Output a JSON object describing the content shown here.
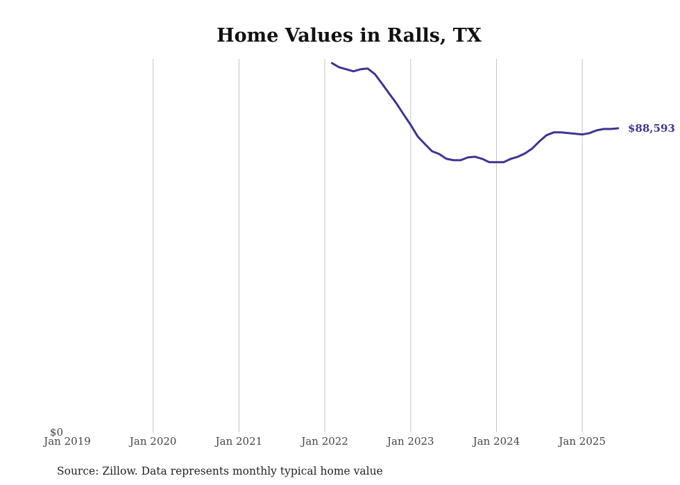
{
  "chart_data": {
    "type": "line",
    "title": "Home Values in Ralls, TX",
    "xlabel": "",
    "ylabel": "",
    "x_tick_labels": [
      "Jan 2019",
      "Jan 2020",
      "Jan 2021",
      "Jan 2022",
      "Jan 2023",
      "Jan 2024",
      "Jan 2025"
    ],
    "y_tick_labels": [
      "$0"
    ],
    "ylim": [
      0,
      108800
    ],
    "xlim": [
      "2019-01",
      "2025-06"
    ],
    "grid": "vertical",
    "line_color": "#3a3594",
    "series": [
      {
        "name": "Typical home value",
        "start": "2022-02",
        "x": [
          "2022-02",
          "2022-03",
          "2022-04",
          "2022-05",
          "2022-06",
          "2022-07",
          "2022-08",
          "2022-09",
          "2022-10",
          "2022-11",
          "2022-12",
          "2023-01",
          "2023-02",
          "2023-03",
          "2023-04",
          "2023-05",
          "2023-06",
          "2023-07",
          "2023-08",
          "2023-09",
          "2023-10",
          "2023-11",
          "2023-12",
          "2024-01",
          "2024-02",
          "2024-03",
          "2024-04",
          "2024-05",
          "2024-06",
          "2024-07",
          "2024-08",
          "2024-09",
          "2024-10",
          "2024-11",
          "2024-12",
          "2025-01",
          "2025-02",
          "2025-03",
          "2025-04",
          "2025-05",
          "2025-06"
        ],
        "values": [
          107600,
          106400,
          105800,
          105200,
          105800,
          106000,
          104400,
          101600,
          98700,
          95900,
          92700,
          89600,
          86200,
          84000,
          81900,
          81100,
          79700,
          79300,
          79300,
          80100,
          80300,
          79700,
          78700,
          78700,
          78700,
          79700,
          80300,
          81300,
          82700,
          84800,
          86600,
          87400,
          87400,
          87200,
          87000,
          86800,
          87200,
          88000,
          88400,
          88400,
          88593
        ]
      }
    ],
    "end_label": "$88,593",
    "source": "Source: Zillow. Data represents monthly typical home value"
  }
}
